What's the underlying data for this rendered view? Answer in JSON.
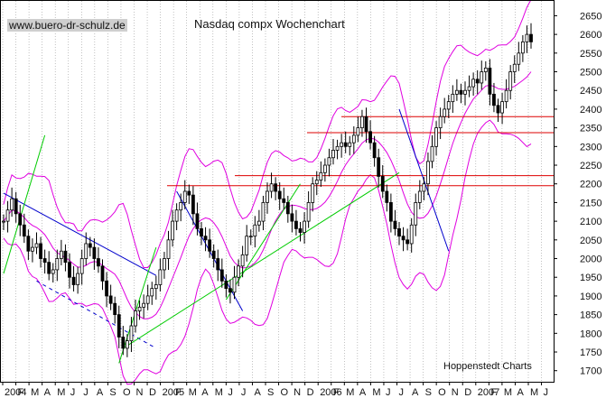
{
  "watermark": "www.buero-dr-schulz.de",
  "source": "Hoppenstedt Charts",
  "chart_data": {
    "type": "candlestick",
    "title": "Nasdaq compx Wochenchart",
    "ylim": [
      1680,
      2680
    ],
    "y_ticks": [
      1700,
      1750,
      1800,
      1850,
      1900,
      1950,
      2000,
      2050,
      2100,
      2150,
      2200,
      2250,
      2300,
      2350,
      2400,
      2450,
      2500,
      2550,
      2600,
      2650
    ],
    "x_tick_labels": [
      "2004",
      "F",
      "M",
      "A",
      "M",
      "J",
      "J",
      "A",
      "S",
      "O",
      "N",
      "D",
      "2005",
      "F",
      "M",
      "A",
      "M",
      "J",
      "J",
      "A",
      "S",
      "O",
      "N",
      "D",
      "2006",
      "F",
      "M",
      "A",
      "M",
      "J",
      "J",
      "A",
      "S",
      "O",
      "N",
      "D",
      "2007",
      "F",
      "M",
      "A",
      "M",
      "J",
      "J",
      "A"
    ],
    "grid": "vertical dotted",
    "price_close_weekly": [
      2100,
      2130,
      2160,
      2120,
      2090,
      2060,
      2020,
      2030,
      2040,
      2000,
      1990,
      1960,
      1970,
      2000,
      2020,
      1990,
      1950,
      1930,
      1960,
      2000,
      2040,
      2030,
      2000,
      1980,
      1940,
      1900,
      1880,
      1850,
      1790,
      1760,
      1780,
      1820,
      1860,
      1870,
      1880,
      1900,
      1920,
      1930,
      1970,
      2000,
      2050,
      2100,
      2130,
      2150,
      2180,
      2170,
      2120,
      2080,
      2060,
      2050,
      2020,
      2000,
      1970,
      1940,
      1920,
      1910,
      1950,
      1980,
      2010,
      2060,
      2060,
      2090,
      2100,
      2150,
      2180,
      2200,
      2180,
      2160,
      2150,
      2120,
      2100,
      2080,
      2070,
      2100,
      2150,
      2200,
      2210,
      2230,
      2250,
      2270,
      2290,
      2300,
      2310,
      2300,
      2310,
      2330,
      2350,
      2380,
      2340,
      2310,
      2270,
      2220,
      2180,
      2150,
      2100,
      2080,
      2060,
      2050,
      2040,
      2090,
      2150,
      2180,
      2200,
      2260,
      2300,
      2350,
      2380,
      2400,
      2420,
      2440,
      2450,
      2440,
      2450,
      2460,
      2480,
      2470,
      2500,
      2510,
      2440,
      2410,
      2390,
      2420,
      2450,
      2500,
      2520,
      2550,
      2580,
      2600,
      2580
    ],
    "horizontal_lines": [
      2380,
      2337,
      2222,
      2195
    ],
    "line_colors": {
      "candles": "#000000",
      "bollinger": "#e000e0",
      "support_resistance": "#dd0000",
      "trend_up": "#00cc00",
      "trend_down": "#0000cc"
    }
  }
}
